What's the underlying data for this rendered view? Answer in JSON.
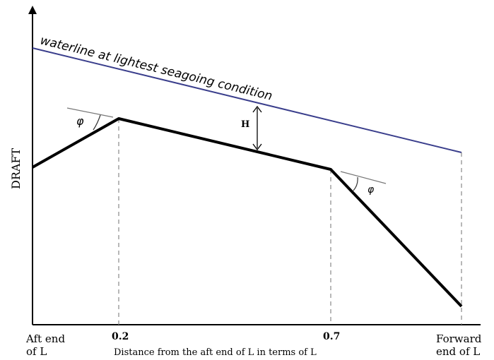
{
  "diagram": {
    "y_axis_label": "DRAFT",
    "x_axis_label": "Distance from the aft end of L in terms of L",
    "waterline_label": "waterline at lightest seagoing condition",
    "height_label": "H",
    "angle_label": "φ",
    "x_ticks": [
      {
        "label": "0.2"
      },
      {
        "label": "0.7"
      }
    ],
    "aft_end_label": [
      "Aft end",
      "of L"
    ],
    "forward_end_label": [
      "Forward",
      "end of L"
    ],
    "colors": {
      "axis": "#000000",
      "profile": "#000000",
      "waterline": "#3a3e8c",
      "dashed": "#888888"
    }
  }
}
